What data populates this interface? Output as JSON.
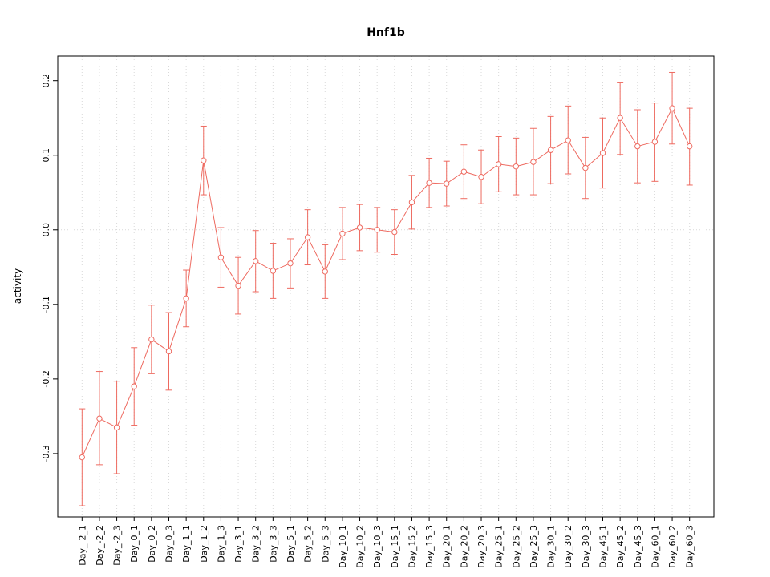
{
  "chart_data": {
    "type": "line",
    "title": "Hnf1b",
    "xlabel": "",
    "ylabel": "activity",
    "ylim": [
      -0.385,
      0.233
    ],
    "yticks": [
      -0.3,
      -0.2,
      -0.1,
      0.0,
      0.1,
      0.2
    ],
    "grid": "vertical dotted gridlines at each category plus dotted line at y=0",
    "legend": "none",
    "categories": [
      "Day_-2_1",
      "Day_-2_2",
      "Day_-2_3",
      "Day_0_1",
      "Day_0_2",
      "Day_0_3",
      "Day_1_1",
      "Day_1_2",
      "Day_1_3",
      "Day_3_1",
      "Day_3_2",
      "Day_3_3",
      "Day_5_1",
      "Day_5_2",
      "Day_5_3",
      "Day_10_1",
      "Day_10_2",
      "Day_10_3",
      "Day_15_1",
      "Day_15_2",
      "Day_15_3",
      "Day_20_1",
      "Day_20_2",
      "Day_20_3",
      "Day_25_1",
      "Day_25_2",
      "Day_25_3",
      "Day_30_1",
      "Day_30_2",
      "Day_30_3",
      "Day_45_1",
      "Day_45_2",
      "Day_45_3",
      "Day_60_1",
      "Day_60_2",
      "Day_60_3"
    ],
    "series": [
      {
        "name": "activity",
        "values": [
          -0.305,
          -0.253,
          -0.265,
          -0.21,
          -0.147,
          -0.163,
          -0.092,
          0.093,
          -0.037,
          -0.075,
          -0.042,
          -0.055,
          -0.045,
          -0.01,
          -0.056,
          -0.005,
          0.003,
          0.0,
          -0.003,
          0.037,
          0.063,
          0.062,
          0.078,
          0.071,
          0.088,
          0.085,
          0.091,
          0.107,
          0.12,
          0.083,
          0.103,
          0.15,
          0.112,
          0.118,
          0.163,
          0.112
        ],
        "lower": [
          -0.37,
          -0.315,
          -0.327,
          -0.262,
          -0.193,
          -0.215,
          -0.13,
          0.047,
          -0.077,
          -0.113,
          -0.083,
          -0.092,
          -0.078,
          -0.047,
          -0.092,
          -0.04,
          -0.028,
          -0.03,
          -0.033,
          0.001,
          0.03,
          0.032,
          0.042,
          0.035,
          0.051,
          0.047,
          0.047,
          0.062,
          0.075,
          0.042,
          0.056,
          0.101,
          0.063,
          0.065,
          0.115,
          0.06
        ],
        "upper": [
          -0.24,
          -0.19,
          -0.203,
          -0.158,
          -0.101,
          -0.111,
          -0.054,
          0.139,
          0.003,
          -0.037,
          -0.001,
          -0.018,
          -0.012,
          0.027,
          -0.02,
          0.03,
          0.034,
          0.03,
          0.027,
          0.073,
          0.096,
          0.092,
          0.114,
          0.107,
          0.125,
          0.123,
          0.136,
          0.152,
          0.166,
          0.124,
          0.15,
          0.198,
          0.161,
          0.17,
          0.211,
          0.163
        ]
      }
    ],
    "colors": {
      "series": "#ee6a60",
      "grid": "#d9d9d9",
      "frame": "#000000",
      "point_fill": "#ffffff"
    }
  }
}
